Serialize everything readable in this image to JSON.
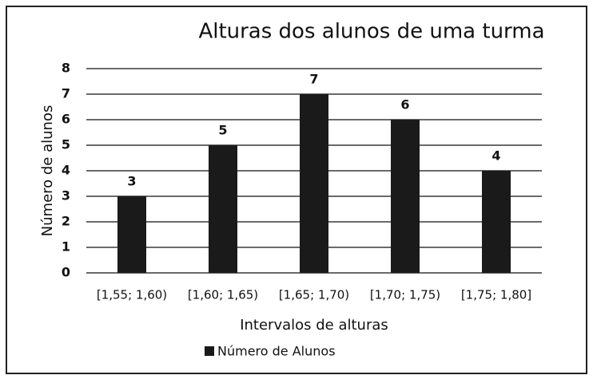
{
  "chart_data": {
    "type": "bar",
    "title": "Alturas dos alunos de uma turma",
    "x_label": "Intervalos de alturas",
    "y_label": "Número de alunos",
    "categories": [
      "[1,55; 1,60)",
      "[1,60; 1,65)",
      "[1,65; 1,70)",
      "[1,70; 1,75)",
      "[1,75; 1,80]"
    ],
    "series": [
      {
        "name": "Número de Alunos",
        "color": "#1a1a1a",
        "values": [
          3,
          5,
          7,
          6,
          4
        ]
      }
    ],
    "ylim": [
      0,
      8
    ],
    "yticks": [
      0,
      1,
      2,
      3,
      4,
      5,
      6,
      7,
      8
    ],
    "grid": true,
    "legend": "bottom"
  }
}
